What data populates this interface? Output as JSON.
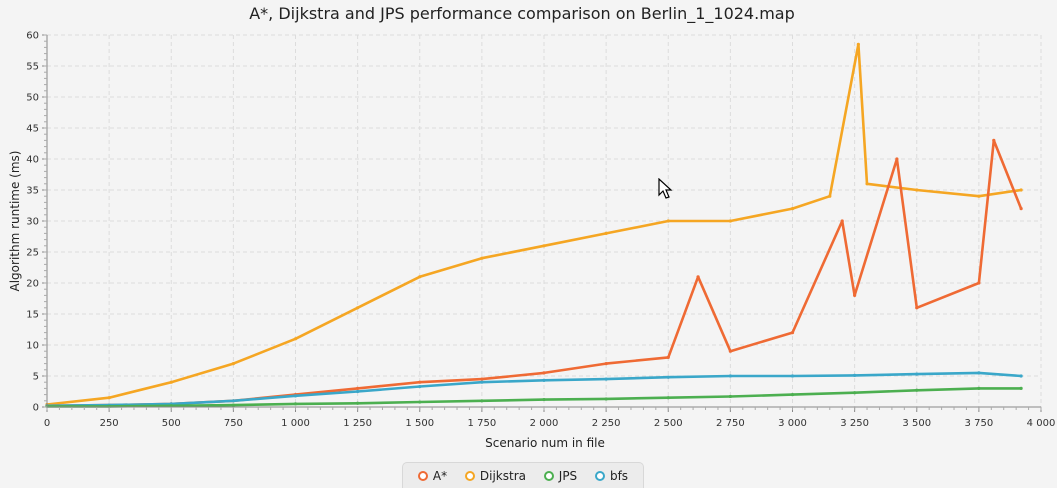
{
  "chart_data": {
    "type": "line",
    "title": "A*, Dijkstra and JPS performance comparison on Berlin_1_1024.map",
    "xlabel": "Scenario num in file",
    "ylabel": "Algorithm runtime (ms)",
    "xlim": [
      0,
      4000
    ],
    "ylim": [
      0,
      60
    ],
    "x_ticks": [
      0,
      250,
      500,
      750,
      1000,
      1250,
      1500,
      1750,
      2000,
      2250,
      2500,
      2750,
      3000,
      3250,
      3500,
      3750,
      4000
    ],
    "x_tick_labels": [
      "0",
      "250",
      "500",
      "750",
      "1 000",
      "1 250",
      "1 500",
      "1 750",
      "2 000",
      "2 250",
      "2 500",
      "2 750",
      "3 000",
      "3 250",
      "3 500",
      "3 750",
      "4 000"
    ],
    "y_ticks": [
      0,
      5,
      10,
      15,
      20,
      25,
      30,
      35,
      40,
      45,
      50,
      55,
      60
    ],
    "grid": true,
    "legend_position": "bottom",
    "series": [
      {
        "name": "A*",
        "color": "#ef6a34",
        "x": [
          0,
          250,
          500,
          750,
          1000,
          1250,
          1500,
          1750,
          2000,
          2250,
          2500,
          2620,
          2750,
          3000,
          3200,
          3250,
          3420,
          3500,
          3750,
          3810,
          3920
        ],
        "values": [
          0.2,
          0.3,
          0.5,
          1.0,
          2.0,
          3.0,
          4.0,
          4.5,
          5.5,
          7.0,
          8.0,
          21.0,
          9.0,
          12.0,
          30.0,
          18.0,
          40.0,
          16.0,
          20.0,
          43.0,
          32.0
        ]
      },
      {
        "name": "Dijkstra",
        "color": "#f5a623",
        "x": [
          0,
          250,
          500,
          750,
          1000,
          1250,
          1500,
          1750,
          2000,
          2250,
          2500,
          2750,
          3000,
          3150,
          3265,
          3300,
          3500,
          3750,
          3920
        ],
        "values": [
          0.4,
          1.5,
          4.0,
          7.0,
          11.0,
          16.0,
          21.0,
          24.0,
          26.0,
          28.0,
          30.0,
          30.0,
          32.0,
          34.0,
          58.5,
          36.0,
          35.0,
          34.0,
          35.0
        ]
      },
      {
        "name": "JPS",
        "color": "#4caf50",
        "x": [
          0,
          250,
          500,
          750,
          1000,
          1250,
          1500,
          1750,
          2000,
          2250,
          2500,
          2750,
          3000,
          3250,
          3500,
          3750,
          3920
        ],
        "values": [
          0.1,
          0.1,
          0.2,
          0.3,
          0.5,
          0.6,
          0.8,
          1.0,
          1.2,
          1.3,
          1.5,
          1.7,
          2.0,
          2.3,
          2.7,
          3.0,
          3.0
        ]
      },
      {
        "name": "bfs",
        "color": "#3aa7c9",
        "x": [
          0,
          250,
          500,
          750,
          1000,
          1250,
          1500,
          1750,
          2000,
          2250,
          2500,
          2750,
          3000,
          3250,
          3500,
          3750,
          3920
        ],
        "values": [
          0.2,
          0.3,
          0.5,
          1.0,
          1.8,
          2.5,
          3.3,
          4.0,
          4.3,
          4.5,
          4.8,
          5.0,
          5.0,
          5.1,
          5.3,
          5.5,
          5.0
        ]
      }
    ]
  }
}
